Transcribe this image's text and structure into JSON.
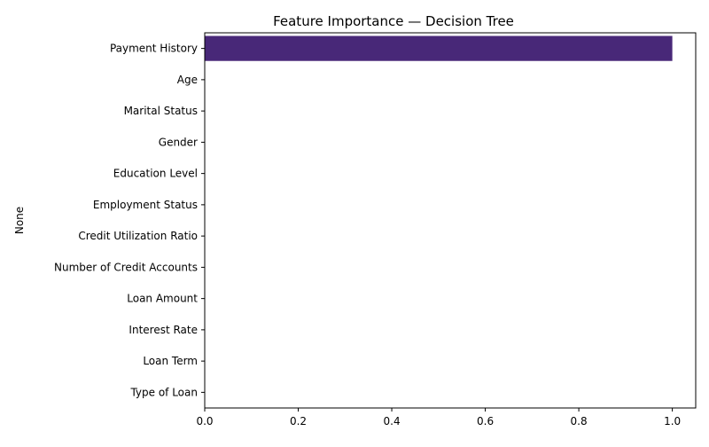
{
  "chart_data": {
    "type": "bar",
    "orientation": "horizontal",
    "title": "Feature Importance — Decision Tree",
    "xlabel": "",
    "ylabel": "None",
    "categories": [
      "Payment History",
      "Age",
      "Marital Status",
      "Gender",
      "Education Level",
      "Employment Status",
      "Credit Utilization Ratio",
      "Number of Credit Accounts",
      "Loan Amount",
      "Interest Rate",
      "Loan Term",
      "Type of Loan"
    ],
    "values": [
      1.0,
      0,
      0,
      0,
      0,
      0,
      0,
      0,
      0,
      0,
      0,
      0
    ],
    "xlim": [
      0,
      1.05
    ],
    "xticks": [
      0.0,
      0.2,
      0.4,
      0.6,
      0.8,
      1.0
    ],
    "xtick_labels": [
      "0.0",
      "0.2",
      "0.4",
      "0.6",
      "0.8",
      "1.0"
    ],
    "grid": false,
    "bar_color": "#482878"
  }
}
